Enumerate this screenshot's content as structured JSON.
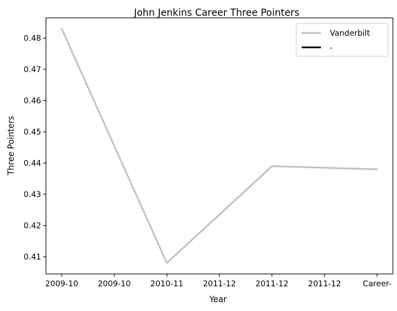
{
  "chart_data": {
    "type": "line",
    "title": "John Jenkins  Career Three Pointers",
    "xlabel": "Year",
    "ylabel": "Three Pointers",
    "categories": [
      "2009-10",
      "2009-10",
      "2010-11",
      "2011-12",
      "2011-12",
      "2011-12",
      "Career-"
    ],
    "series": [
      {
        "name": "Vanderbilt",
        "color": "#bfbfbf",
        "points": [
          {
            "x": 0,
            "y": 0.483
          },
          {
            "x": 2,
            "y": 0.408
          },
          {
            "x": 4,
            "y": 0.439
          },
          {
            "x": 6,
            "y": 0.438
          }
        ]
      },
      {
        "name": "-",
        "color": "#000000",
        "points": []
      }
    ],
    "yticks": [
      0.41,
      0.42,
      0.43,
      0.44,
      0.45,
      0.46,
      0.47,
      0.48
    ],
    "ylim": [
      0.4045,
      0.4865
    ],
    "xlim": [
      -0.3,
      6.3
    ],
    "grid": false,
    "legend_position": "top-right"
  }
}
